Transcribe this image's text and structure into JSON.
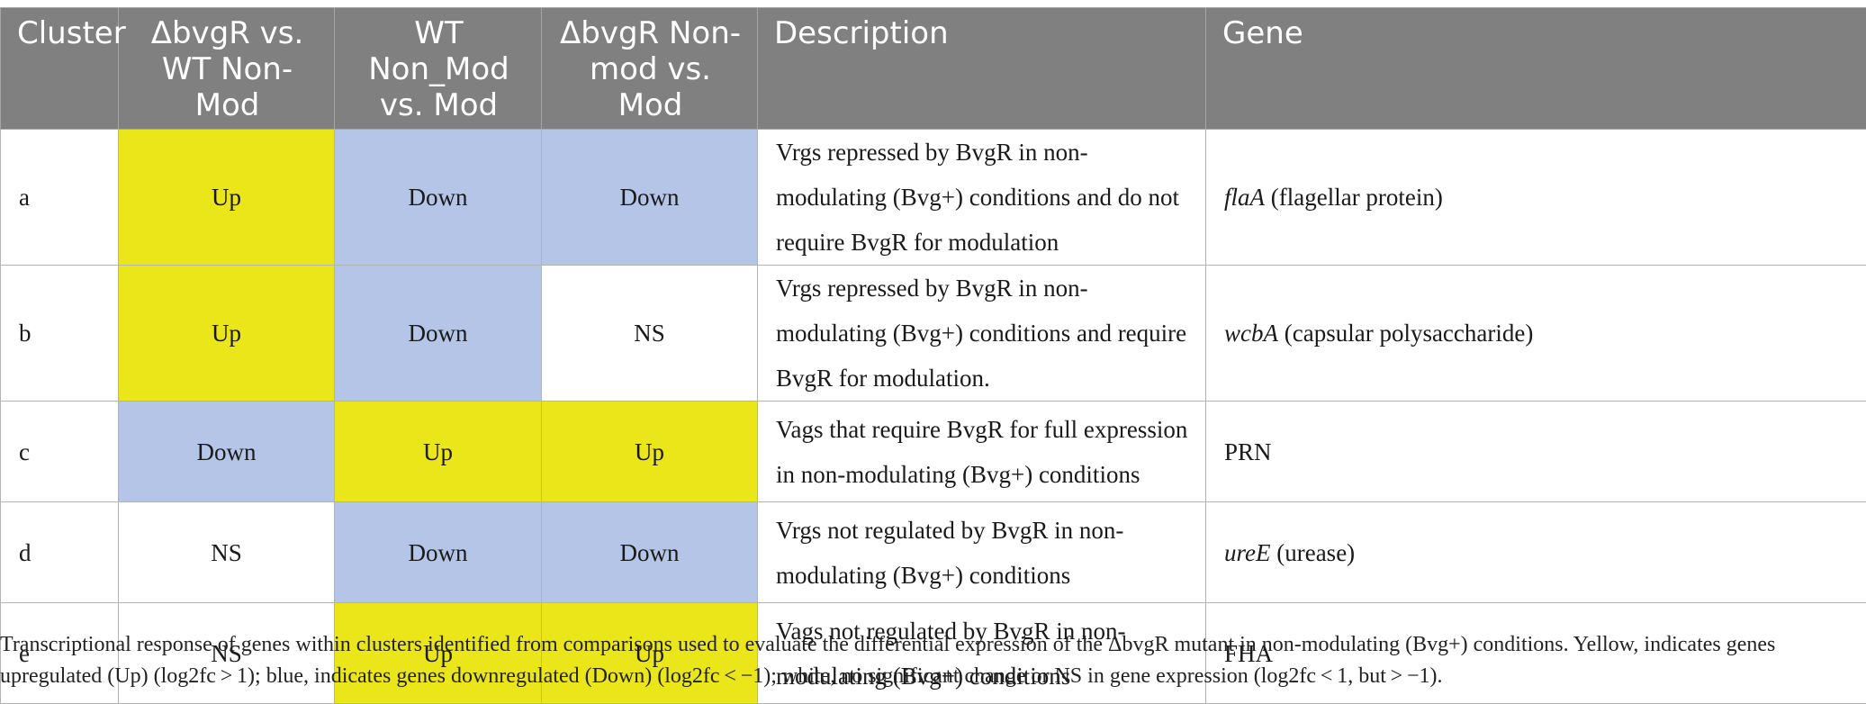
{
  "table": {
    "headers": [
      "Cluster",
      "ΔbvgR vs. WT Non-Mod",
      "WT Non_Mod vs. Mod",
      "ΔbvgR Non-mod vs. Mod",
      "Description",
      "Gene"
    ],
    "rows": [
      {
        "cluster": "a",
        "c1": "Up",
        "c2": "Down",
        "c3": "Down",
        "description": "Vrgs repressed by BvgR in non-modulating (Bvg+) conditions and do not require BvgR for modulation",
        "gene_italic": "flaA",
        "gene_rest": " (flagellar protein)"
      },
      {
        "cluster": "b",
        "c1": "Up",
        "c2": "Down",
        "c3": "NS",
        "description": "Vrgs repressed by BvgR in non-modulating (Bvg+) conditions and require BvgR for modulation.",
        "gene_italic": "wcbA",
        "gene_rest": " (capsular polysaccharide)"
      },
      {
        "cluster": "c",
        "c1": "Down",
        "c2": "Up",
        "c3": "Up",
        "description": "Vags that require BvgR for full expression in non-modulating (Bvg+) conditions",
        "gene_italic": "",
        "gene_rest": "PRN"
      },
      {
        "cluster": "d",
        "c1": "NS",
        "c2": "Down",
        "c3": "Down",
        "description": "Vrgs not regulated by BvgR in non-modulating (Bvg+) conditions",
        "gene_italic": "ureE",
        "gene_rest": " (urease)"
      },
      {
        "cluster": "e",
        "c1": "NS",
        "c2": "Up",
        "c3": "Up",
        "description": "Vags not regulated by BvgR in non-modulating (Bvg+) conditions",
        "gene_italic": "",
        "gene_rest": "FHA"
      }
    ]
  },
  "caption": "Transcriptional response of genes within clusters identified from comparisons used to evaluate the differential expression of the ΔbvgR mutant in non-modulating (Bvg+) conditions. Yellow, indicates genes upregulated (Up) (log2fc > 1); blue, indicates genes downregulated (Down) (log2fc < −1); white, no significant change or NS in gene expression (log2fc < 1, but > −1).",
  "colors": {
    "header_bg": "#7f807f",
    "up": "#ebe61a",
    "down": "#b4c5e7",
    "ns": "#ffffff"
  }
}
